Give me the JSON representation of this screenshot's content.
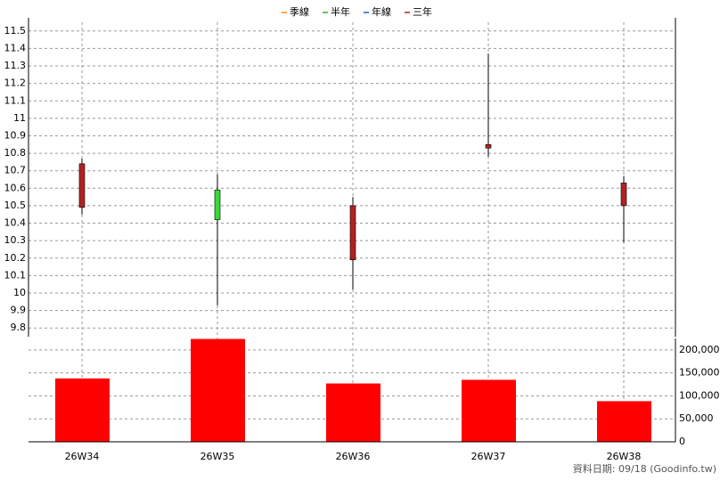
{
  "chart_data": [
    {
      "type": "candlestick",
      "legend": [
        {
          "name": "季線",
          "color": "#ff8c00"
        },
        {
          "name": "半年",
          "color": "#22bb22"
        },
        {
          "name": "年線",
          "color": "#1e5fd0"
        },
        {
          "name": "三年",
          "color": "#b22222"
        }
      ],
      "open": [
        10.49,
        10.59,
        10.19,
        10.83,
        10.5
      ],
      "high": [
        10.77,
        10.68,
        10.55,
        11.37,
        10.67
      ],
      "low": [
        10.45,
        9.93,
        10.02,
        10.78,
        10.29
      ],
      "close": [
        10.74,
        10.42,
        10.5,
        10.85,
        10.63
      ],
      "up_color": "#b22222",
      "down_color": "#33dd33",
      "ylim": [
        9.75,
        11.55
      ],
      "yticks": [
        9.8,
        9.9,
        10,
        10.1,
        10.2,
        10.3,
        10.4,
        10.5,
        10.6,
        10.7,
        10.8,
        10.9,
        11,
        11.1,
        11.2,
        11.3,
        11.4,
        11.5
      ],
      "grid": true
    },
    {
      "type": "bar",
      "categories": [
        "26W34",
        "26W35",
        "26W36",
        "26W37",
        "26W38"
      ],
      "values": [
        138000,
        224000,
        127000,
        135000,
        88500
      ],
      "color": "#ff0000",
      "ylim": [
        0,
        225000
      ],
      "yticks": [
        0,
        {
          "value": 50000,
          "label": "50,000"
        },
        {
          "value": 100000,
          "label": "100,000"
        },
        {
          "value": 150000,
          "label": "150,000"
        },
        {
          "value": 200000,
          "label": "200,000"
        }
      ],
      "grid": true,
      "footnote": "資料日期: 09/18  (Goodinfo.tw)"
    }
  ]
}
